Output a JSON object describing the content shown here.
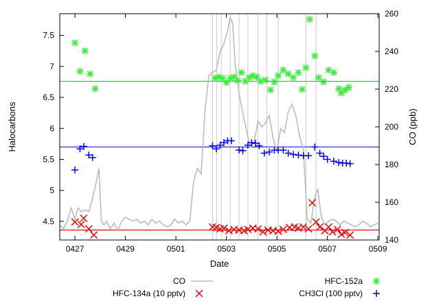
{
  "chart_data": {
    "type": "scatter",
    "xlabel": "Date",
    "ylabel": "Halocarbons",
    "y2label": "CO (ppb)",
    "xlim": [
      -0.6,
      12.05
    ],
    "ylim": [
      4.2,
      7.85
    ],
    "y2lim": [
      140,
      260
    ],
    "x_ticks": [
      {
        "x": 0.0,
        "label": "0427"
      },
      {
        "x": 2.0,
        "label": "0429"
      },
      {
        "x": 4.0,
        "label": "0501"
      },
      {
        "x": 6.0,
        "label": "0503"
      },
      {
        "x": 8.0,
        "label": "0505"
      },
      {
        "x": 10.0,
        "label": "0507"
      },
      {
        "x": 12.0,
        "label": "0509"
      }
    ],
    "y_ticks": [
      4.5,
      5,
      5.5,
      6,
      6.5,
      7,
      7.5
    ],
    "y2_ticks": [
      140,
      160,
      180,
      200,
      220,
      240,
      260
    ],
    "vertical_lines": [
      5.45,
      5.62,
      5.8,
      6.15,
      6.5,
      6.85,
      7.25,
      7.6,
      8.05,
      9.15,
      9.55
    ],
    "reference_lines": [
      {
        "series": "HFC-152a",
        "y": 6.76,
        "color": "#00dd00"
      },
      {
        "series": "CH3Cl (100 pptv)",
        "y": 5.7,
        "color": "#3333cc"
      },
      {
        "series": "HFC-134a (10 pptv)",
        "y": 4.36,
        "color": "#ee0000"
      }
    ],
    "legend_position": "bottom",
    "series": [
      {
        "name": "CO",
        "axis": "y2",
        "style": "line",
        "color": "#bbbbbb",
        "x": [
          -0.6,
          -0.45,
          -0.3,
          -0.15,
          0.0,
          0.12,
          0.25,
          0.4,
          0.55,
          0.7,
          0.85,
          0.95,
          1.05,
          1.15,
          1.25,
          1.4,
          1.55,
          1.7,
          1.85,
          2.0,
          2.15,
          2.3,
          2.45,
          2.6,
          2.75,
          2.9,
          3.05,
          3.2,
          3.35,
          3.5,
          3.65,
          3.8,
          3.95,
          4.1,
          4.25,
          4.4,
          4.55,
          4.7,
          4.85,
          5.0,
          5.15,
          5.3,
          5.45,
          5.6,
          5.75,
          5.9,
          6.05,
          6.15,
          6.25,
          6.35,
          6.5,
          6.65,
          6.8,
          6.95,
          7.1,
          7.25,
          7.4,
          7.55,
          7.7,
          7.85,
          8.0,
          8.15,
          8.3,
          8.45,
          8.6,
          8.75,
          8.9,
          9.05,
          9.2,
          9.35,
          9.5,
          9.62,
          9.75,
          9.9,
          10.05,
          10.2,
          10.35,
          10.5,
          10.65,
          10.8,
          10.95,
          11.1,
          11.25,
          11.4,
          11.55,
          11.7,
          11.85,
          12.0
        ],
        "values": [
          148,
          146,
          150,
          157,
          151,
          157,
          155,
          156,
          155,
          162,
          171,
          178,
          150,
          148,
          150,
          146,
          149,
          145,
          150,
          152,
          151,
          150,
          151,
          149,
          150,
          148,
          151,
          149,
          150,
          148,
          147,
          148,
          151,
          149,
          150,
          148,
          150,
          171,
          178,
          175,
          208,
          227,
          229,
          230,
          240,
          244,
          251,
          258,
          255,
          233,
          218,
          207,
          198,
          189,
          192,
          203,
          200,
          202,
          206,
          194,
          187,
          199,
          197,
          208,
          212,
          206,
          195,
          188,
          151,
          149,
          163,
          167,
          153,
          148,
          150,
          151,
          150,
          148,
          150,
          149,
          148,
          147,
          148,
          150,
          149,
          147,
          148,
          149
        ]
      },
      {
        "name": "HFC-152a",
        "axis": "y",
        "style": "marker",
        "marker": "star",
        "color": "#33ee33",
        "x": [
          0.0,
          0.2,
          0.4,
          0.6,
          0.8,
          5.55,
          5.7,
          5.85,
          6.0,
          6.15,
          6.3,
          6.45,
          6.6,
          6.75,
          6.9,
          7.05,
          7.2,
          7.35,
          7.55,
          7.75,
          7.9,
          8.05,
          8.25,
          8.45,
          8.65,
          8.85,
          9.0,
          9.15,
          9.3,
          9.5,
          9.65,
          9.85,
          10.05,
          10.25,
          10.45,
          10.55,
          10.7,
          10.85
        ],
        "values": [
          7.38,
          6.92,
          7.25,
          6.88,
          6.64,
          6.81,
          6.83,
          6.81,
          6.74,
          6.81,
          6.83,
          6.77,
          6.9,
          6.76,
          6.82,
          6.85,
          6.83,
          6.76,
          6.78,
          6.62,
          6.75,
          6.85,
          6.94,
          6.88,
          6.82,
          6.9,
          6.63,
          6.98,
          7.76,
          7.17,
          6.82,
          6.75,
          6.94,
          6.9,
          6.64,
          6.57,
          6.62,
          6.66
        ]
      },
      {
        "name": "CH3Cl (100 pptv)",
        "axis": "y",
        "style": "marker",
        "marker": "plus",
        "color": "#0000ee",
        "x": [
          0.0,
          0.2,
          0.35,
          0.55,
          0.7,
          5.45,
          5.6,
          5.75,
          5.9,
          6.05,
          6.2,
          6.5,
          6.65,
          6.85,
          7.0,
          7.15,
          7.3,
          7.5,
          7.7,
          7.9,
          8.05,
          8.25,
          8.45,
          8.65,
          8.85,
          9.05,
          9.25,
          9.5,
          9.7,
          9.85,
          10.0,
          10.25,
          10.45,
          10.6,
          10.75,
          10.9
        ],
        "values": [
          5.33,
          5.67,
          5.71,
          5.57,
          5.53,
          5.72,
          5.67,
          5.73,
          5.77,
          5.8,
          5.8,
          5.65,
          5.64,
          5.73,
          5.77,
          5.76,
          5.72,
          5.6,
          5.62,
          5.65,
          5.65,
          5.65,
          5.6,
          5.58,
          5.57,
          5.56,
          5.56,
          5.7,
          5.6,
          5.55,
          5.5,
          5.47,
          5.45,
          5.44,
          5.44,
          5.43
        ]
      },
      {
        "name": "HFC-134a (10 pptv)",
        "axis": "y",
        "style": "marker",
        "marker": "cross",
        "color": "#ee0000",
        "x": [
          0.0,
          0.25,
          0.35,
          0.55,
          0.75,
          5.45,
          5.6,
          5.75,
          5.9,
          6.1,
          6.3,
          6.5,
          6.7,
          6.85,
          7.05,
          7.25,
          7.45,
          7.65,
          7.85,
          8.05,
          8.25,
          8.5,
          8.7,
          8.85,
          9.05,
          9.25,
          9.4,
          9.55,
          9.7,
          9.9,
          10.05,
          10.2,
          10.4,
          10.55,
          10.7,
          10.9
        ],
        "values": [
          4.49,
          4.45,
          4.55,
          4.38,
          4.28,
          4.41,
          4.4,
          4.38,
          4.39,
          4.35,
          4.37,
          4.36,
          4.35,
          4.37,
          4.39,
          4.38,
          4.33,
          4.36,
          4.35,
          4.34,
          4.37,
          4.4,
          4.41,
          4.39,
          4.41,
          4.38,
          4.8,
          4.49,
          4.41,
          4.35,
          4.41,
          4.33,
          4.37,
          4.29,
          4.32,
          4.28
        ]
      }
    ]
  }
}
